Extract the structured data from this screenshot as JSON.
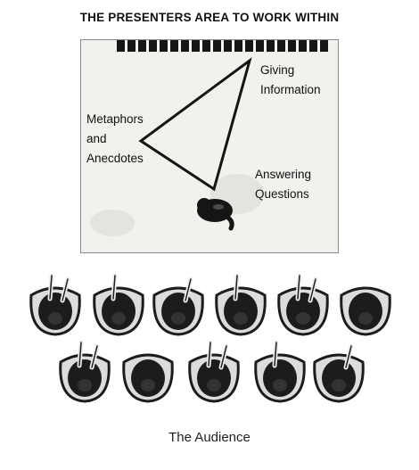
{
  "figure": {
    "title": "THE PRESENTERS AREA TO WORK WITHIN",
    "caption": "The Audience"
  },
  "labels": {
    "giving": [
      "Giving",
      "Information"
    ],
    "metaphors": [
      "Metaphors",
      "and",
      "Anecdotes"
    ],
    "answering": [
      "Answering",
      "Questions"
    ]
  },
  "audience": {
    "rows": [
      {
        "seats": 6
      },
      {
        "seats": 5
      }
    ]
  },
  "colors": {
    "ink": "#111111",
    "stage": "#f2f1ee",
    "seat_fill": "#1c1c1c"
  }
}
